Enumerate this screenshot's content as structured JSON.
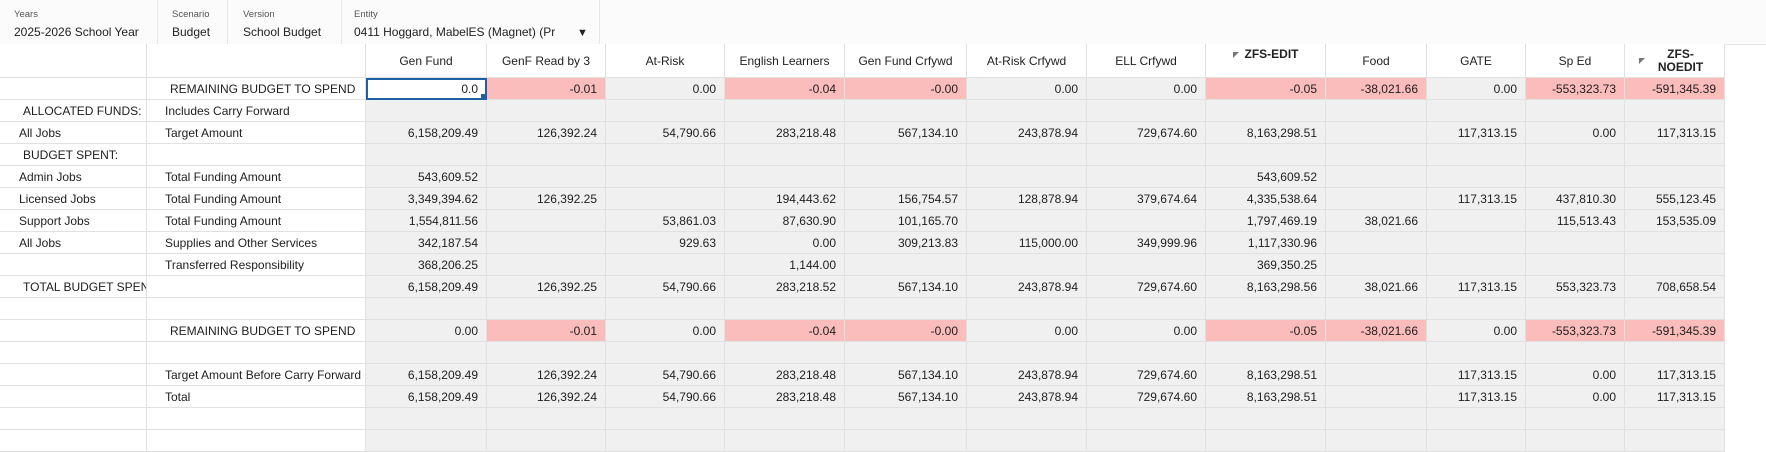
{
  "pov": {
    "years_label": "Years",
    "years_value": "2025-2026 School Year",
    "scenario_label": "Scenario",
    "scenario_value": "Budget",
    "version_label": "Version",
    "version_value": "School Budget",
    "entity_label": "Entity",
    "entity_value": "0411  Hoggard, MabelES (Magnet) (Pr",
    "entity_dropdown_icon": "caret-down-icon"
  },
  "columns": [
    "Gen Fund",
    "GenF Read by 3",
    "At-Risk",
    "English Learners",
    "Gen Fund Crfywd",
    "At-Risk Crfywd",
    "ELL Crfywd",
    "ZFS-EDIT",
    "Food",
    "GATE",
    "Sp Ed",
    "ZFS-NOEDIT"
  ],
  "colors": {
    "negative_highlight": "#fbbcbc",
    "stripe": "#f0f0f0",
    "selection": "#1f5fa8"
  },
  "rows": [
    {
      "a": "",
      "b": "REMAINING BUDGET TO SPEND",
      "vals": [
        "0.0",
        "-0.01",
        "0.00",
        "-0.04",
        "-0.00",
        "0.00",
        "0.00",
        "-0.05",
        "-38,021.66",
        "0.00",
        "-553,323.73",
        "-591,345.39"
      ]
    },
    {
      "a": "ALLOCATED FUNDS:",
      "b": "Includes Carry Forward",
      "vals": [
        "",
        "",
        "",
        "",
        "",
        "",
        "",
        "",
        "",
        "",
        "",
        ""
      ]
    },
    {
      "a": "All Jobs",
      "b": "Target Amount",
      "vals": [
        "6,158,209.49",
        "126,392.24",
        "54,790.66",
        "283,218.48",
        "567,134.10",
        "243,878.94",
        "729,674.60",
        "8,163,298.51",
        "",
        "117,313.15",
        "0.00",
        "117,313.15"
      ]
    },
    {
      "a": "BUDGET SPENT:",
      "b": "",
      "vals": [
        "",
        "",
        "",
        "",
        "",
        "",
        "",
        "",
        "",
        "",
        "",
        ""
      ]
    },
    {
      "a": "Admin Jobs",
      "b": "Total Funding Amount",
      "vals": [
        "543,609.52",
        "",
        "",
        "",
        "",
        "",
        "",
        "543,609.52",
        "",
        "",
        "",
        ""
      ]
    },
    {
      "a": "Licensed Jobs",
      "b": "Total Funding Amount",
      "vals": [
        "3,349,394.62",
        "126,392.25",
        "",
        "194,443.62",
        "156,754.57",
        "128,878.94",
        "379,674.64",
        "4,335,538.64",
        "",
        "117,313.15",
        "437,810.30",
        "555,123.45"
      ]
    },
    {
      "a": "Support Jobs",
      "b": "Total Funding Amount",
      "vals": [
        "1,554,811.56",
        "",
        "53,861.03",
        "87,630.90",
        "101,165.70",
        "",
        "",
        "1,797,469.19",
        "38,021.66",
        "",
        "115,513.43",
        "153,535.09"
      ]
    },
    {
      "a": "All Jobs",
      "b": "Supplies and Other Services",
      "vals": [
        "342,187.54",
        "",
        "929.63",
        "0.00",
        "309,213.83",
        "115,000.00",
        "349,999.96",
        "1,117,330.96",
        "",
        "",
        "",
        ""
      ]
    },
    {
      "a": "",
      "b": "Transferred Responsibility",
      "vals": [
        "368,206.25",
        "",
        "",
        "1,144.00",
        "",
        "",
        "",
        "369,350.25",
        "",
        "",
        "",
        ""
      ]
    },
    {
      "a": "TOTAL BUDGET SPENT",
      "b": "",
      "vals": [
        "6,158,209.49",
        "126,392.25",
        "54,790.66",
        "283,218.52",
        "567,134.10",
        "243,878.94",
        "729,674.60",
        "8,163,298.56",
        "38,021.66",
        "117,313.15",
        "553,323.73",
        "708,658.54"
      ]
    },
    {
      "a": "",
      "b": "",
      "vals": [
        "",
        "",
        "",
        "",
        "",
        "",
        "",
        "",
        "",
        "",
        "",
        ""
      ]
    },
    {
      "a": "",
      "b": "REMAINING BUDGET TO SPEND",
      "vals": [
        "0.00",
        "-0.01",
        "0.00",
        "-0.04",
        "-0.00",
        "0.00",
        "0.00",
        "-0.05",
        "-38,021.66",
        "0.00",
        "-553,323.73",
        "-591,345.39"
      ]
    },
    {
      "a": "",
      "b": "",
      "vals": [
        "",
        "",
        "",
        "",
        "",
        "",
        "",
        "",
        "",
        "",
        "",
        ""
      ]
    },
    {
      "a": "",
      "b": "Target Amount Before Carry Forward",
      "vals": [
        "6,158,209.49",
        "126,392.24",
        "54,790.66",
        "283,218.48",
        "567,134.10",
        "243,878.94",
        "729,674.60",
        "8,163,298.51",
        "",
        "117,313.15",
        "0.00",
        "117,313.15"
      ]
    },
    {
      "a": "",
      "b": "Total",
      "vals": [
        "6,158,209.49",
        "126,392.24",
        "54,790.66",
        "283,218.48",
        "567,134.10",
        "243,878.94",
        "729,674.60",
        "8,163,298.51",
        "",
        "117,313.15",
        "0.00",
        "117,313.15"
      ]
    },
    {
      "a": "",
      "b": "",
      "vals": [
        "",
        "",
        "",
        "",
        "",
        "",
        "",
        "",
        "",
        "",
        "",
        ""
      ]
    },
    {
      "a": "",
      "b": "",
      "vals": [
        "",
        "",
        "",
        "",
        "",
        "",
        "",
        "",
        "",
        "",
        "",
        ""
      ]
    }
  ]
}
